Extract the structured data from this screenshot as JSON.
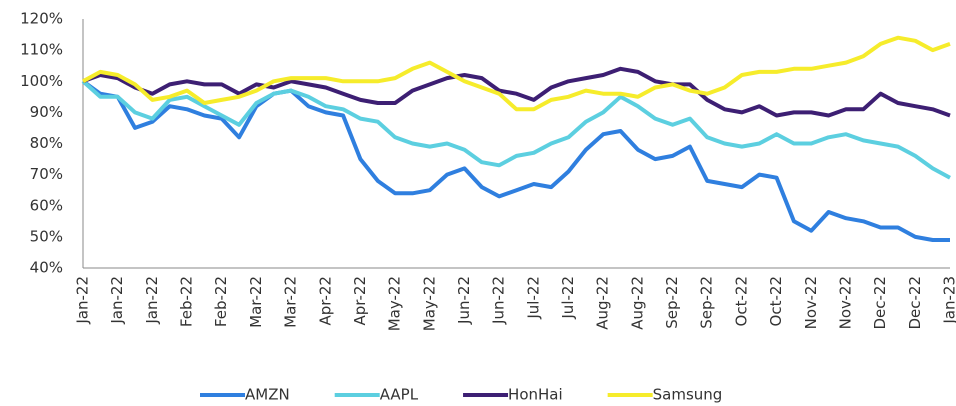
{
  "chart_data": {
    "type": "line",
    "categories": [
      "Jan-22",
      null,
      "Jan-22",
      null,
      "Jan-22",
      null,
      "Feb-22",
      null,
      "Feb-22",
      null,
      "Mar-22",
      null,
      "Mar-22",
      null,
      "Apr-22",
      null,
      "Apr-22",
      null,
      "May-22",
      null,
      "May-22",
      null,
      "Jun-22",
      null,
      "Jun-22",
      null,
      "Jul-22",
      null,
      "Jul-22",
      null,
      "Aug-22",
      null,
      "Aug-22",
      null,
      "Sep-22",
      null,
      "Sep-22",
      null,
      "Oct-22",
      null,
      "Oct-22",
      null,
      "Nov-22",
      null,
      "Nov-22",
      null,
      "Dec-22",
      null,
      "Dec-22",
      null,
      "Jan-23"
    ],
    "series": [
      {
        "name": "AMZN",
        "color": "#2f7fdf",
        "values": [
          100,
          96,
          95,
          85,
          87,
          92,
          91,
          89,
          88,
          82,
          92,
          96,
          97,
          92,
          90,
          89,
          75,
          68,
          64,
          64,
          65,
          70,
          72,
          66,
          63,
          65,
          67,
          66,
          71,
          78,
          83,
          84,
          78,
          75,
          76,
          79,
          68,
          67,
          66,
          70,
          69,
          55,
          52,
          58,
          56,
          55,
          53,
          53,
          50,
          49,
          49
        ]
      },
      {
        "name": "AAPL",
        "color": "#5ccfe0",
        "values": [
          100,
          95,
          95,
          90,
          88,
          94,
          95,
          92,
          89,
          86,
          93,
          96,
          97,
          95,
          92,
          91,
          88,
          87,
          82,
          80,
          79,
          80,
          78,
          74,
          73,
          76,
          77,
          80,
          82,
          87,
          90,
          95,
          92,
          88,
          86,
          88,
          82,
          80,
          79,
          80,
          83,
          80,
          80,
          82,
          83,
          81,
          80,
          79,
          76,
          72,
          69
        ]
      },
      {
        "name": "HonHai",
        "color": "#3d1f73",
        "values": [
          100,
          102,
          101,
          98,
          96,
          99,
          100,
          99,
          99,
          96,
          99,
          98,
          100,
          99,
          98,
          96,
          94,
          93,
          93,
          97,
          99,
          101,
          102,
          101,
          97,
          96,
          94,
          98,
          100,
          101,
          102,
          104,
          103,
          100,
          99,
          99,
          94,
          91,
          90,
          92,
          89,
          90,
          90,
          89,
          91,
          91,
          96,
          93,
          92,
          91,
          89
        ]
      },
      {
        "name": "Samsung",
        "color": "#f6ec2b",
        "values": [
          100,
          103,
          102,
          99,
          94,
          95,
          97,
          93,
          94,
          95,
          97,
          100,
          101,
          101,
          101,
          100,
          100,
          100,
          101,
          104,
          106,
          103,
          100,
          98,
          96,
          91,
          91,
          94,
          95,
          97,
          96,
          96,
          95,
          98,
          99,
          97,
          96,
          98,
          102,
          103,
          103,
          104,
          104,
          105,
          106,
          108,
          112,
          114,
          113,
          110,
          112
        ]
      }
    ],
    "ylim": [
      40,
      120
    ],
    "yticks": [
      {
        "value": 40,
        "label": "40%"
      },
      {
        "value": 50,
        "label": "50%"
      },
      {
        "value": 60,
        "label": "60%"
      },
      {
        "value": 70,
        "label": "70%"
      },
      {
        "value": 80,
        "label": "80%"
      },
      {
        "value": 90,
        "label": "90%"
      },
      {
        "value": 100,
        "label": "100%"
      },
      {
        "value": 110,
        "label": "110%"
      },
      {
        "value": 120,
        "label": "120%"
      }
    ],
    "grid": false,
    "legend": "bottom"
  }
}
